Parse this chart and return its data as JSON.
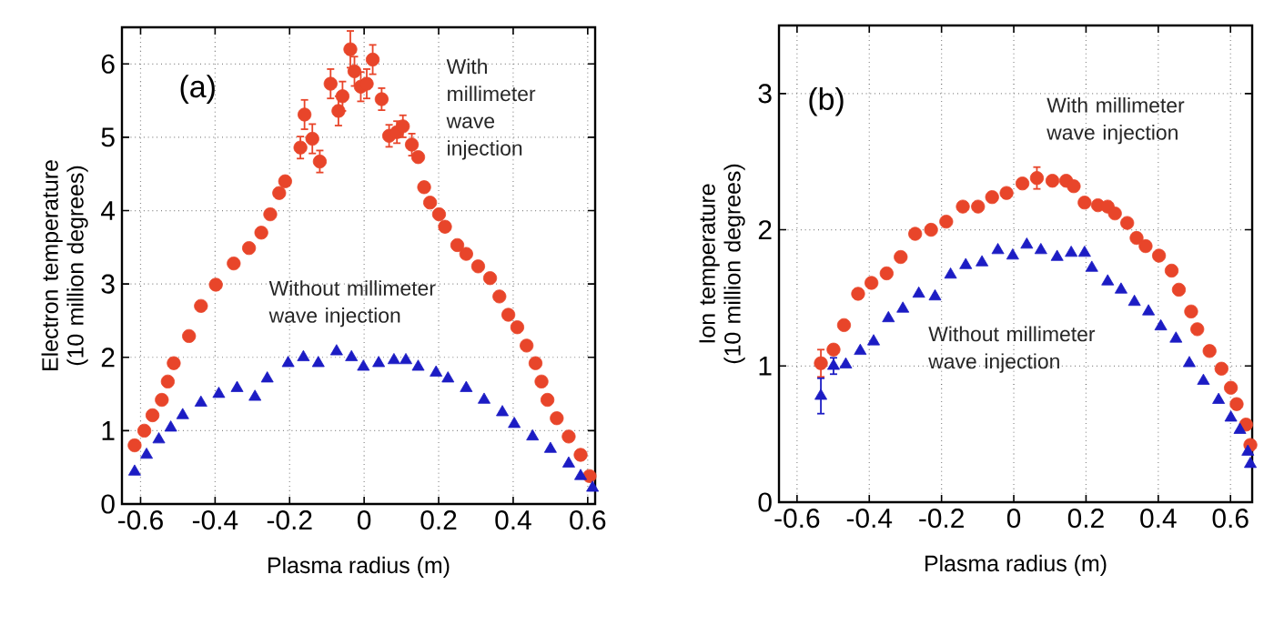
{
  "chart_data": [
    {
      "type": "scatter",
      "xlabel": "Plasma radius (m)",
      "ylabel": "Electron temperature (10 million degrees)",
      "xlim": [
        -0.65,
        0.62
      ],
      "ylim": [
        0,
        6.5
      ],
      "xticks": [
        -0.6,
        -0.4,
        -0.2,
        0,
        0.2,
        0.4,
        0.6
      ],
      "yticks": [
        0,
        1,
        2,
        3,
        4,
        5,
        6
      ],
      "grid": true,
      "annotations": [
        "(a)",
        "With millimeter wave injection",
        "Without millimeter wave injection"
      ],
      "series": [
        {
          "color": "#e8452a",
          "marker": "circle",
          "x": [
            -0.616,
            -0.59,
            -0.568,
            -0.543,
            -0.527,
            -0.511,
            -0.47,
            -0.438,
            -0.398,
            -0.35,
            -0.309,
            -0.276,
            -0.252,
            -0.228,
            -0.212,
            -0.171,
            -0.16,
            -0.139,
            -0.119,
            -0.09,
            -0.069,
            -0.058,
            -0.037,
            -0.026,
            -0.009,
            0.007,
            0.023,
            0.047,
            0.067,
            0.088,
            0.104,
            0.128,
            0.145,
            0.161,
            0.177,
            0.201,
            0.217,
            0.25,
            0.274,
            0.306,
            0.338,
            0.363,
            0.387,
            0.411,
            0.436,
            0.46,
            0.476,
            0.492,
            0.517,
            0.549,
            0.581,
            0.605
          ],
          "values": [
            0.8,
            1.0,
            1.21,
            1.42,
            1.67,
            1.92,
            2.29,
            2.7,
            2.99,
            3.28,
            3.49,
            3.7,
            3.95,
            4.24,
            4.4,
            4.86,
            5.31,
            4.98,
            4.67,
            5.73,
            5.36,
            5.56,
            6.2,
            5.9,
            5.69,
            5.73,
            6.06,
            5.52,
            5.02,
            5.07,
            5.15,
            4.9,
            4.73,
            4.32,
            4.11,
            3.95,
            3.78,
            3.53,
            3.41,
            3.24,
            3.08,
            2.83,
            2.58,
            2.41,
            2.16,
            1.92,
            1.67,
            1.42,
            1.17,
            0.92,
            0.67,
            0.38
          ],
          "errors": [
            null,
            null,
            null,
            null,
            null,
            null,
            null,
            null,
            null,
            null,
            null,
            null,
            null,
            null,
            null,
            0.15,
            0.2,
            0.2,
            0.15,
            0.2,
            0.2,
            0.2,
            0.25,
            0.2,
            0.2,
            0.2,
            0.2,
            0.15,
            0.15,
            0.15,
            0.15,
            0.15,
            null,
            null,
            null,
            null,
            null,
            null,
            null,
            null,
            null,
            null,
            null,
            null,
            null,
            null,
            null,
            null,
            null,
            null,
            null,
            null
          ]
        },
        {
          "color": "#1c1cc4",
          "marker": "triangle",
          "x": [
            -0.616,
            -0.584,
            -0.551,
            -0.519,
            -0.487,
            -0.438,
            -0.39,
            -0.341,
            -0.293,
            -0.26,
            -0.204,
            -0.163,
            -0.123,
            -0.074,
            -0.034,
            -0.002,
            0.039,
            0.08,
            0.112,
            0.145,
            0.193,
            0.225,
            0.274,
            0.322,
            0.371,
            0.403,
            0.452,
            0.5,
            0.549,
            0.581,
            0.613
          ],
          "values": [
            0.44,
            0.67,
            0.88,
            1.04,
            1.21,
            1.38,
            1.5,
            1.58,
            1.46,
            1.71,
            1.92,
            2.0,
            1.92,
            2.08,
            2.0,
            1.87,
            1.92,
            1.96,
            1.96,
            1.87,
            1.79,
            1.71,
            1.58,
            1.42,
            1.25,
            1.09,
            0.92,
            0.75,
            0.55,
            0.38,
            0.22
          ]
        }
      ]
    },
    {
      "type": "scatter",
      "xlabel": "Plasma radius (m)",
      "ylabel": "Ion temperature (10 million degrees)",
      "xlim": [
        -0.65,
        0.66
      ],
      "ylim": [
        0,
        3.5
      ],
      "xticks": [
        -0.6,
        -0.4,
        -0.2,
        0,
        0.2,
        0.4,
        0.6
      ],
      "yticks": [
        0,
        1,
        2,
        3
      ],
      "grid": true,
      "annotations": [
        "(b)",
        "With millimeter wave injection",
        "Without millimeter wave injection"
      ],
      "series": [
        {
          "color": "#e8452a",
          "marker": "circle",
          "x": [
            -0.534,
            -0.499,
            -0.47,
            -0.431,
            -0.394,
            -0.352,
            -0.313,
            -0.273,
            -0.229,
            -0.187,
            -0.141,
            -0.099,
            -0.06,
            -0.02,
            0.024,
            0.064,
            0.107,
            0.145,
            0.166,
            0.196,
            0.233,
            0.26,
            0.28,
            0.314,
            0.34,
            0.365,
            0.402,
            0.437,
            0.457,
            0.491,
            0.508,
            0.542,
            0.575,
            0.601,
            0.617,
            0.643,
            0.655
          ],
          "values": [
            1.02,
            1.12,
            1.3,
            1.53,
            1.61,
            1.68,
            1.8,
            1.97,
            2.0,
            2.06,
            2.17,
            2.17,
            2.24,
            2.27,
            2.34,
            2.38,
            2.36,
            2.36,
            2.32,
            2.2,
            2.18,
            2.17,
            2.12,
            2.05,
            1.94,
            1.88,
            1.81,
            1.7,
            1.56,
            1.4,
            1.27,
            1.11,
            0.98,
            0.84,
            0.72,
            0.57,
            0.42
          ],
          "errors": [
            0.1,
            null,
            null,
            null,
            null,
            null,
            null,
            null,
            null,
            null,
            null,
            null,
            null,
            null,
            null,
            0.08,
            null,
            null,
            null,
            null,
            null,
            null,
            null,
            null,
            null,
            null,
            null,
            null,
            null,
            null,
            null,
            null,
            null,
            null,
            null,
            null,
            null
          ]
        },
        {
          "color": "#1c1cc4",
          "marker": "triangle",
          "x": [
            -0.534,
            -0.499,
            -0.465,
            -0.425,
            -0.388,
            -0.347,
            -0.307,
            -0.263,
            -0.218,
            -0.175,
            -0.133,
            -0.088,
            -0.044,
            -0.003,
            0.036,
            0.075,
            0.12,
            0.159,
            0.196,
            0.216,
            0.26,
            0.297,
            0.334,
            0.373,
            0.407,
            0.449,
            0.486,
            0.525,
            0.567,
            0.601,
            0.626,
            0.648,
            0.655
          ],
          "values": [
            0.78,
            1.0,
            1.01,
            1.11,
            1.18,
            1.35,
            1.42,
            1.53,
            1.51,
            1.67,
            1.74,
            1.76,
            1.85,
            1.81,
            1.89,
            1.85,
            1.8,
            1.83,
            1.83,
            1.72,
            1.62,
            1.56,
            1.47,
            1.4,
            1.29,
            1.2,
            1.02,
            0.89,
            0.75,
            0.62,
            0.53,
            0.37,
            0.28
          ],
          "errors": [
            0.13,
            0.06,
            null,
            null,
            null,
            null,
            null,
            null,
            null,
            null,
            null,
            null,
            null,
            null,
            null,
            null,
            null,
            null,
            null,
            null,
            null,
            null,
            null,
            null,
            null,
            null,
            null,
            null,
            null,
            null,
            null,
            null,
            null
          ]
        }
      ]
    }
  ]
}
